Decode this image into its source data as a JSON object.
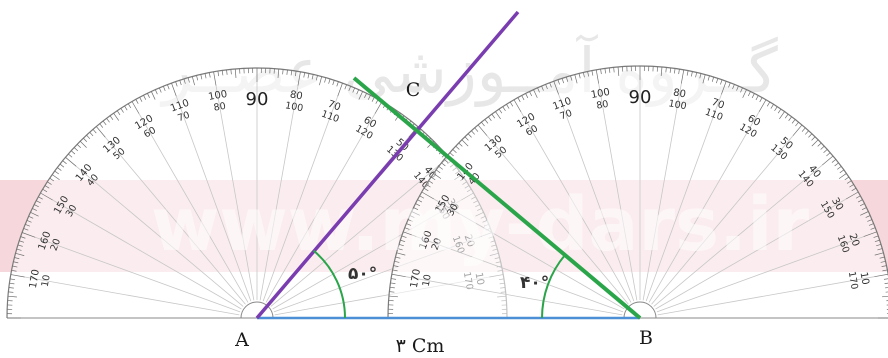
{
  "watermark": {
    "top_text": "گــروه آمــوزشی عصــر",
    "url_text": "www.my-dars.ir",
    "band_color": "#f3c9cf"
  },
  "protractors": [
    {
      "id": "at-A",
      "outer_labels": [
        "10",
        "20",
        "30",
        "40",
        "50",
        "60",
        "70",
        "80",
        "90",
        "100",
        "110",
        "120",
        "130",
        "140",
        "150",
        "160",
        "170"
      ],
      "inner_labels": [
        "170",
        "160",
        "150",
        "140",
        "130",
        "120",
        "110",
        "100",
        "90",
        "80",
        "70",
        "60",
        "50",
        "40",
        "30",
        "20",
        "10"
      ],
      "top_label": "90"
    },
    {
      "id": "at-B",
      "outer_labels": [
        "10",
        "20",
        "30",
        "40",
        "50",
        "60",
        "70",
        "80",
        "90",
        "100",
        "110",
        "120",
        "130",
        "140",
        "150",
        "160",
        "170"
      ],
      "inner_labels": [
        "170",
        "160",
        "150",
        "140",
        "130",
        "120",
        "110",
        "100",
        "90",
        "80",
        "70",
        "60",
        "50",
        "40",
        "30",
        "20",
        "10"
      ],
      "top_label": "90"
    }
  ],
  "points": {
    "A": "A",
    "B": "B",
    "C": "C"
  },
  "segment_label": "۳ Cm",
  "angles": {
    "at_A": "۵۰°",
    "at_B": "۴۰°"
  },
  "colors": {
    "AB": "#4d8fd6",
    "AC": "#7a3db0",
    "BC": "#2aa54a",
    "arc": "#2aa54a"
  }
}
